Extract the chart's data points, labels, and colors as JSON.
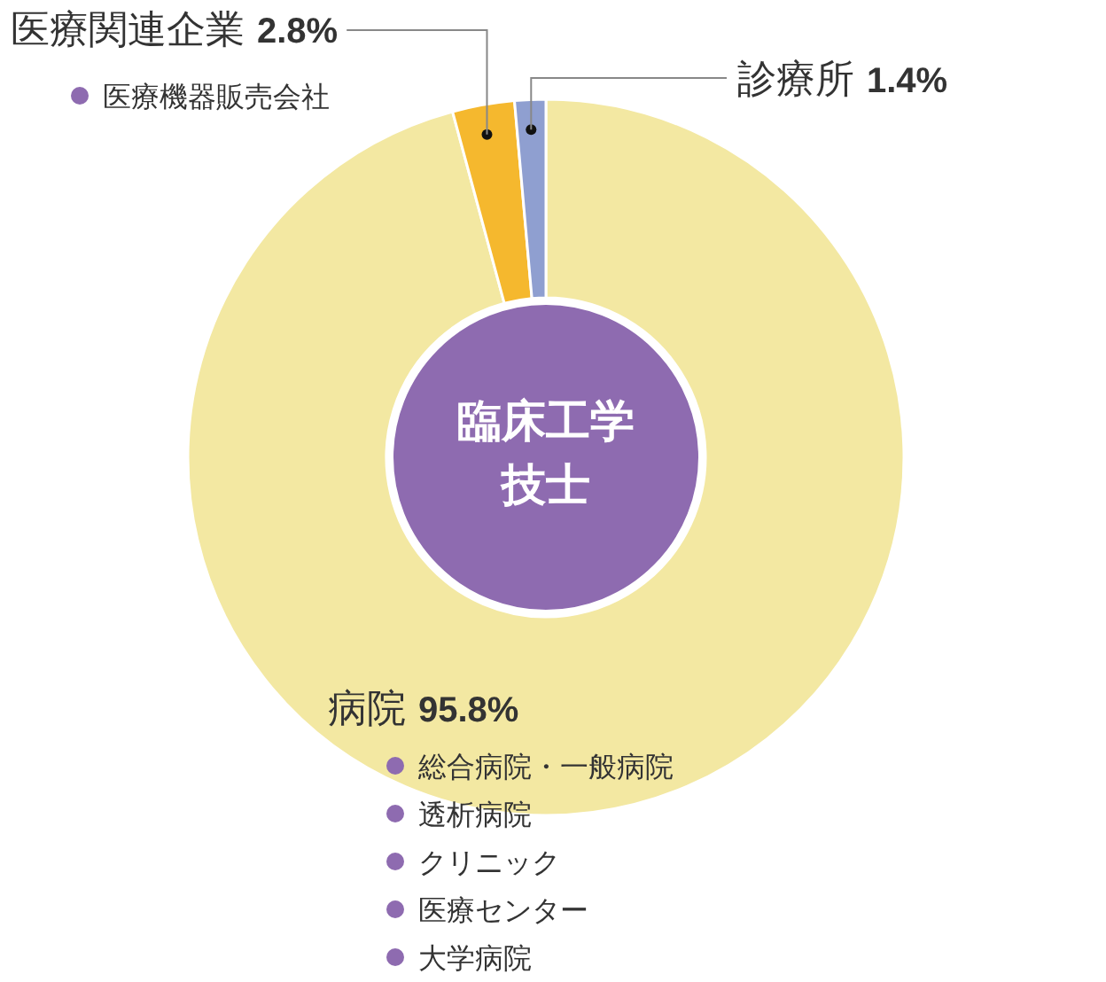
{
  "chart_data": {
    "type": "donut",
    "title": "臨床工学技士",
    "categories": [
      "病院",
      "医療関連企業",
      "診療所"
    ],
    "values": [
      95.8,
      2.8,
      1.4
    ],
    "value_labels": [
      "95.8%",
      "2.8%",
      "1.4%"
    ],
    "colors": [
      "#f3e8a2",
      "#f5b82e",
      "#8f9fd0"
    ],
    "annotations": [
      "医療機器販売会社",
      "総合病院・一般病院",
      "透析病院",
      "クリニック",
      "医療センター",
      "大学病院"
    ]
  }
}
